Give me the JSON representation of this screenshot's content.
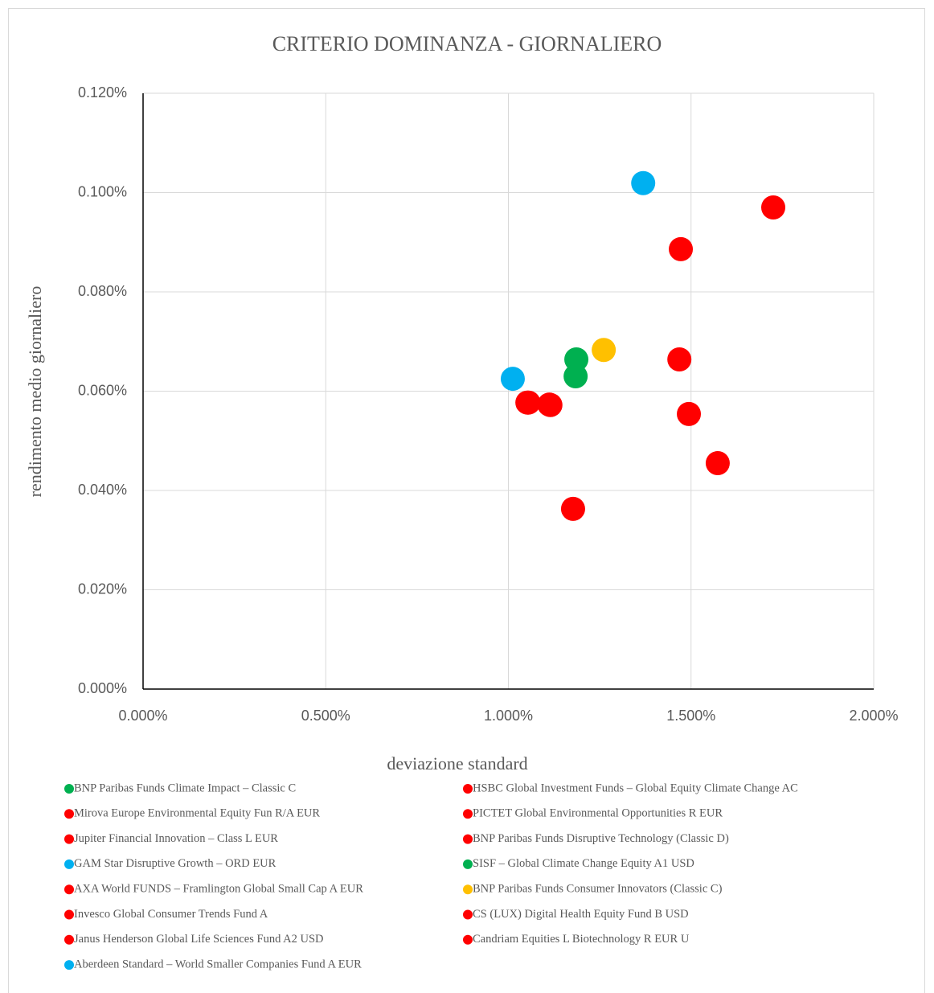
{
  "chart_data": {
    "type": "scatter",
    "title": "CRITERIO DOMINANZA - GIORNALIERO",
    "x_label": "deviazione standard",
    "y_label": "rendimento medio giornaliero",
    "xlim": [
      0,
      2
    ],
    "ylim": [
      0,
      0.12
    ],
    "xticks": [
      {
        "value": 0,
        "label": "0.000%"
      },
      {
        "value": 0.5,
        "label": "0.500%"
      },
      {
        "value": 1,
        "label": "1.000%"
      },
      {
        "value": 1.5,
        "label": "1.500%"
      },
      {
        "value": 2,
        "label": "2.000%"
      }
    ],
    "yticks": [
      {
        "value": 0,
        "label": "0.000%"
      },
      {
        "value": 0.02,
        "label": "0.020%"
      },
      {
        "value": 0.04,
        "label": "0.040%"
      },
      {
        "value": 0.06,
        "label": "0.060%"
      },
      {
        "value": 0.08,
        "label": "0.080%"
      },
      {
        "value": 0.1,
        "label": "0.100%"
      },
      {
        "value": 0.12,
        "label": "0.120%"
      }
    ],
    "grid": true,
    "legend": "bottom",
    "series": [
      {
        "name": "BNP Paribas Funds Climate Impact – Classic C",
        "color": "#00b050",
        "x": [
          1.186
        ],
        "values": [
          0.0664
        ]
      },
      {
        "name": "Mirova Europe Environmental Equity Fun R/A EUR",
        "color": "#ff0000",
        "x": [
          1.468
        ],
        "values": [
          0.0664
        ]
      },
      {
        "name": "Jupiter Financial Innovation – Class L EUR",
        "color": "#ff0000",
        "x": [
          1.115
        ],
        "values": [
          0.0572
        ]
      },
      {
        "name": "GAM Star Disruptive Growth – ORD EUR",
        "color": "#00b0f0",
        "x": [
          1.369
        ],
        "values": [
          0.1019
        ]
      },
      {
        "name": "AXA World FUNDS – Framlington Global Small Cap A EUR",
        "color": "#ff0000",
        "x": [
          1.052
        ],
        "values": [
          0.0577
        ]
      },
      {
        "name": "Invesco Global Consumer Trends Fund A",
        "color": "#ff0000",
        "x": [
          1.725
        ],
        "values": [
          0.097
        ]
      },
      {
        "name": "Janus Henderson Global Life Sciences Fund A2 USD",
        "color": "#ff0000",
        "x": [
          1.573
        ],
        "values": [
          0.0455
        ]
      },
      {
        "name": "Aberdeen Standard – World Smaller Companies Fund A EUR",
        "color": "#00b0f0",
        "x": [
          1.012
        ],
        "values": [
          0.0625
        ]
      },
      {
        "name": "HSBC Global Investment Funds – Global Equity Climate Change AC",
        "color": "#ff0000",
        "x": [
          1.472
        ],
        "values": [
          0.0886
        ]
      },
      {
        "name": "PICTET Global Environmental Opportunities R EUR",
        "color": "#ff0000",
        "x": [
          1.055
        ],
        "values": [
          0.0577
        ]
      },
      {
        "name": "BNP Paribas Funds Disruptive Technology (Classic D)",
        "color": "#ff0000",
        "x": [
          1.112
        ],
        "values": [
          0.0573
        ]
      },
      {
        "name": "SISF – Global Climate Change Equity A1 USD",
        "color": "#00b050",
        "x": [
          1.184
        ],
        "values": [
          0.063
        ]
      },
      {
        "name": "BNP Paribas Funds Consumer Innovators (Classic C)",
        "color": "#ffc000",
        "x": [
          1.261
        ],
        "values": [
          0.0683
        ]
      },
      {
        "name": "CS (LUX) Digital Health Equity Fund B USD",
        "color": "#ff0000",
        "x": [
          1.494
        ],
        "values": [
          0.0554
        ]
      },
      {
        "name": "Candriam Equities L Biotechnology R EUR U",
        "color": "#ff0000",
        "x": [
          1.177
        ],
        "values": [
          0.0363
        ]
      }
    ]
  }
}
